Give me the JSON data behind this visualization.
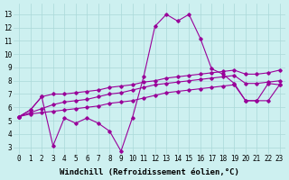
{
  "x": [
    0,
    1,
    2,
    3,
    4,
    5,
    6,
    7,
    8,
    9,
    10,
    11,
    12,
    13,
    14,
    15,
    16,
    17,
    18,
    19,
    20,
    21,
    22,
    23
  ],
  "line1": [
    5.3,
    5.8,
    6.8,
    3.1,
    5.2,
    4.8,
    5.2,
    4.8,
    4.2,
    2.7,
    5.2,
    8.3,
    12.1,
    13.0,
    12.5,
    13.0,
    11.2,
    8.9,
    8.5,
    7.8,
    6.5,
    6.5,
    7.8,
    7.7
  ],
  "line2": [
    5.3,
    5.5,
    5.6,
    5.7,
    5.8,
    5.9,
    6.0,
    6.1,
    6.3,
    6.4,
    6.5,
    6.7,
    6.9,
    7.1,
    7.2,
    7.3,
    7.4,
    7.5,
    7.6,
    7.7,
    6.5,
    6.5,
    6.5,
    7.7
  ],
  "line3": [
    5.3,
    5.6,
    5.9,
    6.2,
    6.4,
    6.5,
    6.6,
    6.8,
    7.0,
    7.1,
    7.3,
    7.5,
    7.7,
    7.8,
    7.9,
    8.0,
    8.1,
    8.2,
    8.3,
    8.4,
    7.8,
    7.8,
    7.9,
    8.0
  ],
  "line4": [
    5.3,
    5.8,
    6.8,
    7.0,
    7.0,
    7.1,
    7.2,
    7.3,
    7.5,
    7.6,
    7.7,
    7.9,
    8.0,
    8.2,
    8.3,
    8.4,
    8.5,
    8.6,
    8.7,
    8.8,
    8.5,
    8.5,
    8.6,
    8.8
  ],
  "line_color": "#990099",
  "background_color": "#cdf0f0",
  "grid_color": "#aad8d8",
  "xlabel": "Windchill (Refroidissement éolien,°C)",
  "yticks": [
    3,
    4,
    5,
    6,
    7,
    8,
    9,
    10,
    11,
    12,
    13
  ],
  "xticks": [
    0,
    1,
    2,
    3,
    4,
    5,
    6,
    7,
    8,
    9,
    10,
    11,
    12,
    13,
    14,
    15,
    16,
    17,
    18,
    19,
    20,
    21,
    22,
    23
  ],
  "ylim": [
    2.5,
    13.8
  ],
  "xlim": [
    -0.5,
    23.5
  ],
  "marker": "D",
  "markersize": 1.8,
  "linewidth": 0.8,
  "xlabel_fontsize": 6.5,
  "tick_fontsize": 5.5
}
